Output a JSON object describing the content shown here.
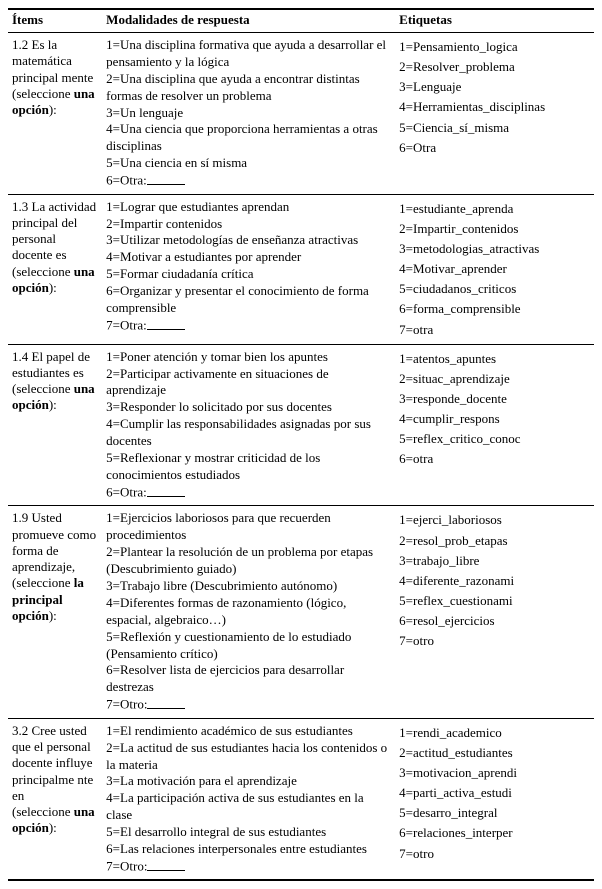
{
  "headers": {
    "items": "Ítems",
    "modalities": "Modalidades de respuesta",
    "labels": "Etiquetas"
  },
  "rows": [
    {
      "item": {
        "pre": "1.2 Es la matemática principal mente",
        "sel_open": "(seleccione ",
        "sel_bold": "una opción",
        "sel_close": "):"
      },
      "mods": [
        "1=Una disciplina formativa que ayuda a desarrollar el pensamiento y la lógica",
        "2=Una disciplina que ayuda a encontrar distintas formas de resolver un problema",
        "3=Un lenguaje",
        "4=Una ciencia que proporciona herramientas a otras disciplinas",
        "5=Una ciencia en sí misma"
      ],
      "otra": "6=Otra:",
      "labels": [
        "1=Pensamiento_logica",
        "2=Resolver_problema",
        "3=Lenguaje",
        "4=Herramientas_disciplinas",
        "5=Ciencia_sí_misma",
        "6=Otra"
      ]
    },
    {
      "item": {
        "pre": "1.3 La actividad principal del personal docente es",
        "sel_open": "(seleccione ",
        "sel_bold": "una opción",
        "sel_close": "):"
      },
      "mods": [
        "1=Lograr que estudiantes aprendan",
        "2=Impartir contenidos",
        "3=Utilizar metodologías de enseñanza atractivas",
        "4=Motivar a estudiantes por aprender",
        "5=Formar ciudadanía crítica",
        "6=Organizar y presentar el conocimiento de forma comprensible"
      ],
      "otra": "7=Otra:",
      "labels": [
        "1=estudiante_aprenda",
        "2=Impartir_contenidos",
        "3=metodologias_atractivas",
        "4=Motivar_aprender",
        "5=ciudadanos_criticos",
        "6=forma_comprensible",
        "7=otra"
      ]
    },
    {
      "item": {
        "pre": "1.4 El papel de estudiantes es",
        "sel_open": "(seleccione ",
        "sel_bold": "una opción",
        "sel_close": "):"
      },
      "mods": [
        "1=Poner atención y tomar bien los apuntes",
        "2=Participar activamente en situaciones de aprendizaje",
        "3=Responder lo solicitado por sus docentes",
        "4=Cumplir las responsabilidades asignadas por sus docentes",
        "5=Reflexionar y mostrar criticidad de los conocimientos estudiados"
      ],
      "otra": "6=Otra:",
      "labels": [
        "1=atentos_apuntes",
        "2=situac_aprendizaje",
        "3=responde_docente",
        "4=cumplir_respons",
        "5=reflex_critico_conoc",
        "6=otra"
      ]
    },
    {
      "item": {
        "pre": "1.9   Usted promueve como forma de aprendizaje,",
        "sel_open": "(seleccione ",
        "sel_bold": "la principal opción",
        "sel_close": "):"
      },
      "mods": [
        "1=Ejercicios laboriosos para que recuerden procedimientos",
        "2=Plantear la resolución de un problema por etapas (Descubrimiento guiado)",
        "3=Trabajo libre (Descubrimiento autónomo)",
        "4=Diferentes formas de razonamiento (lógico, espacial, algebraico…)",
        "5=Reflexión y cuestionamiento de lo estudiado (Pensamiento crítico)",
        "6=Resolver lista de ejercicios para desarrollar destrezas"
      ],
      "otra": "7=Otro:",
      "labels": [
        "1=ejerci_laboriosos",
        "2=resol_prob_etapas",
        "3=trabajo_libre",
        "4=diferente_razonami",
        "5=reflex_cuestionami",
        "6=resol_ejercicios",
        "7=otro"
      ]
    },
    {
      "item": {
        "pre": "3.2 Cree usted que el personal docente influye principalme nte en",
        "sel_open": "(seleccione ",
        "sel_bold": "una opción",
        "sel_close": "):"
      },
      "mods": [
        "1=El rendimiento académico de sus estudiantes",
        "2=La actitud de sus estudiantes hacia los contenidos o la materia",
        "3=La motivación para el aprendizaje",
        "4=La participación activa de sus estudiantes en la clase",
        "5=El desarrollo integral de sus estudiantes",
        "6=Las relaciones interpersonales entre estudiantes"
      ],
      "otra": "7=Otro:",
      "labels": [
        "1=rendi_academico",
        "2=actitud_estudiantes",
        "3=motivacion_aprendi",
        "4=parti_activa_estudi",
        "5=desarro_integral",
        "6=relaciones_interper",
        "7=otro"
      ]
    }
  ]
}
